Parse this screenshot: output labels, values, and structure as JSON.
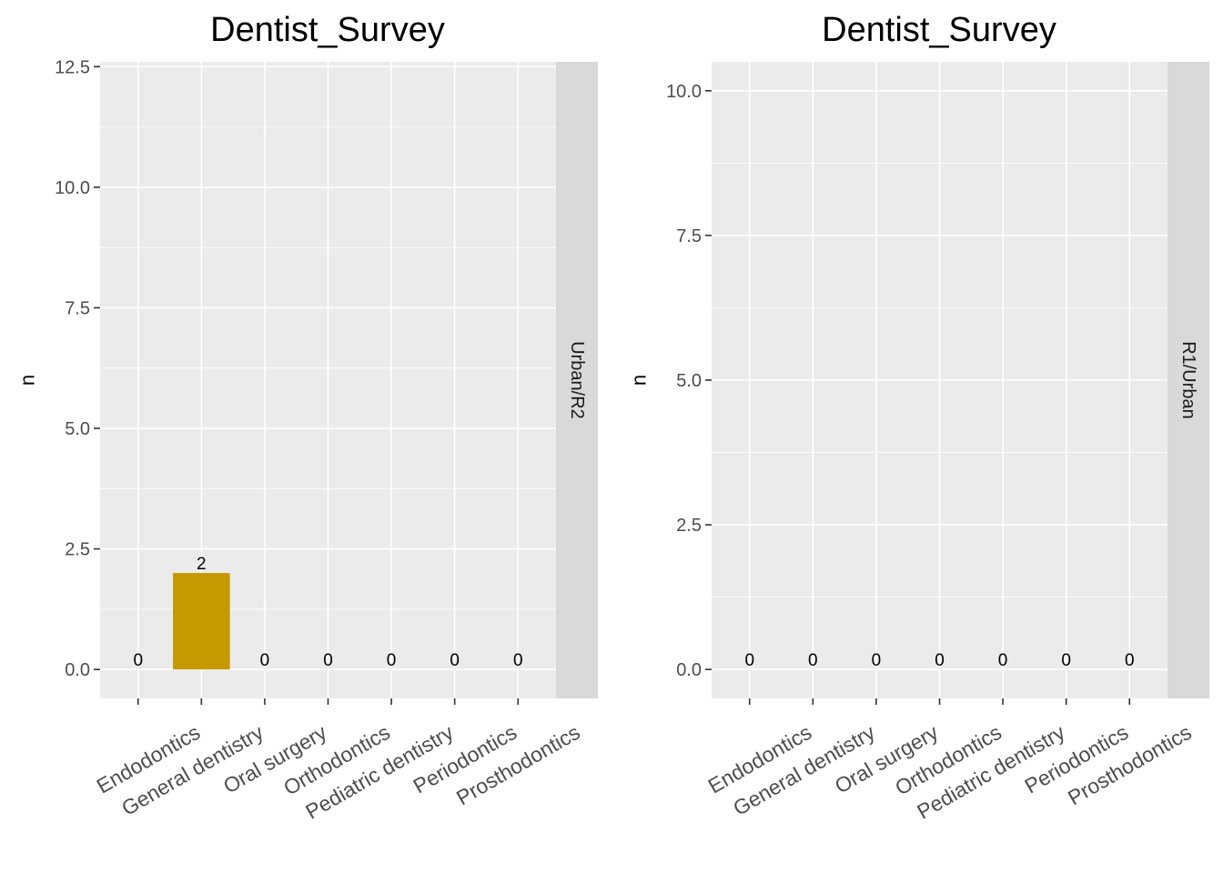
{
  "chart_data": [
    {
      "type": "bar",
      "title": "Dentist_Survey",
      "ylabel": "n",
      "xlabel": "",
      "facet_label": "Urban/R2",
      "categories": [
        "Endodontics",
        "General dentistry",
        "Oral surgery",
        "Orthodontics",
        "Pediatric dentistry",
        "Periodontics",
        "Prosthodontics"
      ],
      "values": [
        0,
        2,
        0,
        0,
        0,
        0,
        0
      ],
      "data_labels": [
        "0",
        "2",
        "0",
        "0",
        "0",
        "0",
        "0"
      ],
      "ylim": [
        -0.6,
        12.6
      ],
      "yticks": [
        "0.0",
        "2.5",
        "5.0",
        "7.5",
        "10.0",
        "12.5"
      ],
      "bar_color": "#C49A00",
      "panel_color": "#EBEBEB",
      "strip_color": "#D9D9D9",
      "grid": true
    },
    {
      "type": "bar",
      "title": "Dentist_Survey",
      "ylabel": "n",
      "xlabel": "",
      "facet_label": "R1/Urban",
      "categories": [
        "Endodontics",
        "General dentistry",
        "Oral surgery",
        "Orthodontics",
        "Pediatric dentistry",
        "Periodontics",
        "Prosthodontics"
      ],
      "values": [
        0,
        0,
        0,
        0,
        0,
        0,
        0
      ],
      "data_labels": [
        "0",
        "0",
        "0",
        "0",
        "0",
        "0",
        "0"
      ],
      "ylim": [
        -0.5,
        10.5
      ],
      "yticks": [
        "0.0",
        "2.5",
        "5.0",
        "7.5",
        "10.0"
      ],
      "bar_color": "#C49A00",
      "panel_color": "#EBEBEB",
      "strip_color": "#D9D9D9",
      "grid": true
    }
  ]
}
